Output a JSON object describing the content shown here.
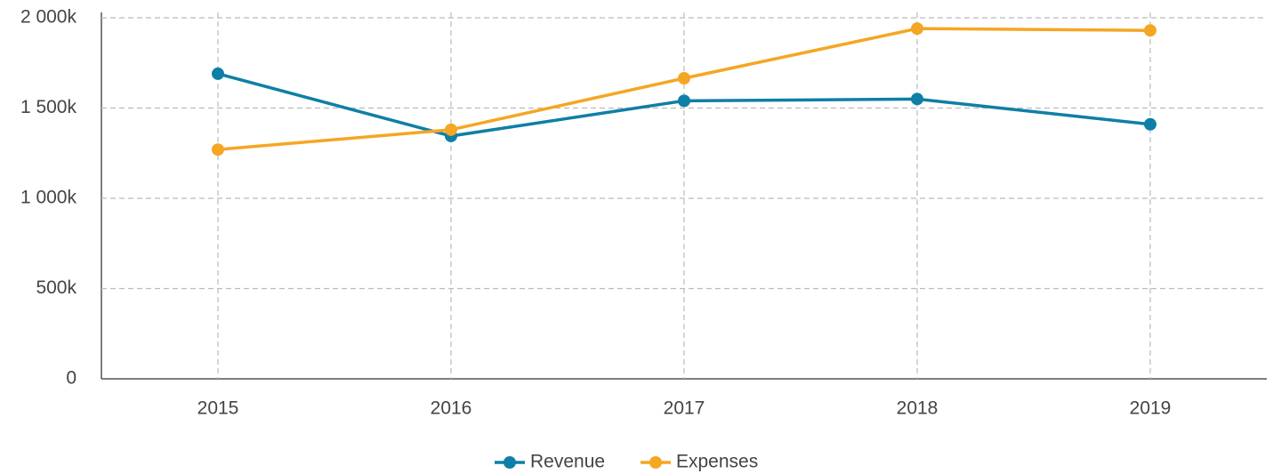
{
  "chart_data": {
    "type": "line",
    "categories": [
      "2015",
      "2016",
      "2017",
      "2018",
      "2019"
    ],
    "series": [
      {
        "name": "Revenue",
        "color": "#0e7fa6",
        "values": [
          1690000,
          1345000,
          1540000,
          1550000,
          1410000
        ]
      },
      {
        "name": "Expenses",
        "color": "#f5a623",
        "values": [
          1270000,
          1380000,
          1665000,
          1940000,
          1930000
        ]
      }
    ],
    "ylim": [
      0,
      2000000
    ],
    "yticks": [
      0,
      {
        "value": 500000,
        "label": "500k"
      },
      {
        "value": 1000000,
        "label": "1 000k"
      },
      {
        "value": 1500000,
        "label": "1 500k"
      },
      {
        "value": 2000000,
        "label": "2 000k"
      }
    ],
    "grid": true,
    "legend": "bottom"
  }
}
